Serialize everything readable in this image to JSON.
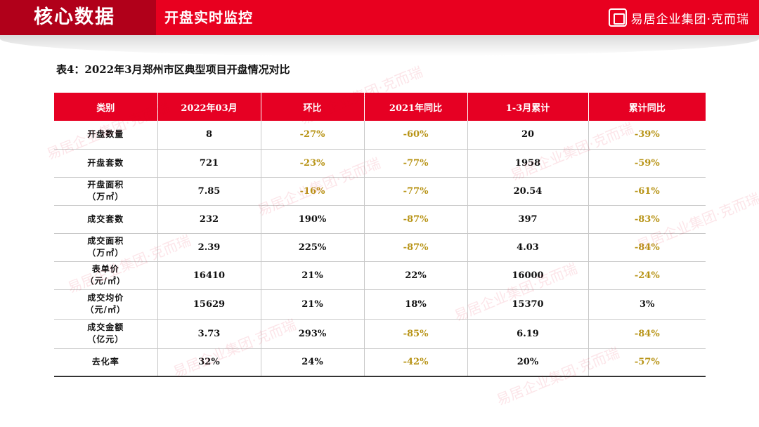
{
  "header": {
    "section_title": "核心数据",
    "page_title": "开盘实时监控",
    "logo_text": "易居企业集团·克而瑞",
    "seal_icon": "company-seal-icon"
  },
  "table_caption": "表4：2022年3月郑州市区典型项目开盘情况对比",
  "table": {
    "columns": [
      "类别",
      "2022年03月",
      "环比",
      "2021年同比",
      "1-3月累计",
      "累计同比"
    ],
    "rows": [
      {
        "label": [
          "开盘数量"
        ],
        "values": [
          "8",
          "-27%",
          "-60%",
          "20",
          "-39%"
        ]
      },
      {
        "label": [
          "开盘套数"
        ],
        "values": [
          "721",
          "-23%",
          "-77%",
          "1958",
          "-59%"
        ]
      },
      {
        "label": [
          "开盘面积",
          "（万㎡）"
        ],
        "values": [
          "7.85",
          "-16%",
          "-77%",
          "20.54",
          "-61%"
        ]
      },
      {
        "label": [
          "成交套数"
        ],
        "values": [
          "232",
          "190%",
          "-87%",
          "397",
          "-83%"
        ]
      },
      {
        "label": [
          "成交面积",
          "（万㎡）"
        ],
        "values": [
          "2.39",
          "225%",
          "-87%",
          "4.03",
          "-84%"
        ]
      },
      {
        "label": [
          "表单价",
          "（元/㎡）"
        ],
        "values": [
          "16410",
          "21%",
          "22%",
          "16000",
          "-24%"
        ]
      },
      {
        "label": [
          "成交均价",
          "（元/㎡）"
        ],
        "values": [
          "15629",
          "21%",
          "18%",
          "15370",
          "3%"
        ]
      },
      {
        "label": [
          "成交金额",
          "（亿元）"
        ],
        "values": [
          "3.73",
          "293%",
          "-85%",
          "6.19",
          "-84%"
        ]
      },
      {
        "label": [
          "去化率"
        ],
        "values": [
          "32%",
          "24%",
          "-42%",
          "20%",
          "-57%"
        ]
      }
    ]
  },
  "colors": {
    "header_red": "#e8001f",
    "header_dark_red": "#b1001a",
    "negative_value": "#b89417"
  },
  "watermark_text": "易居企业集团·克而瑞"
}
